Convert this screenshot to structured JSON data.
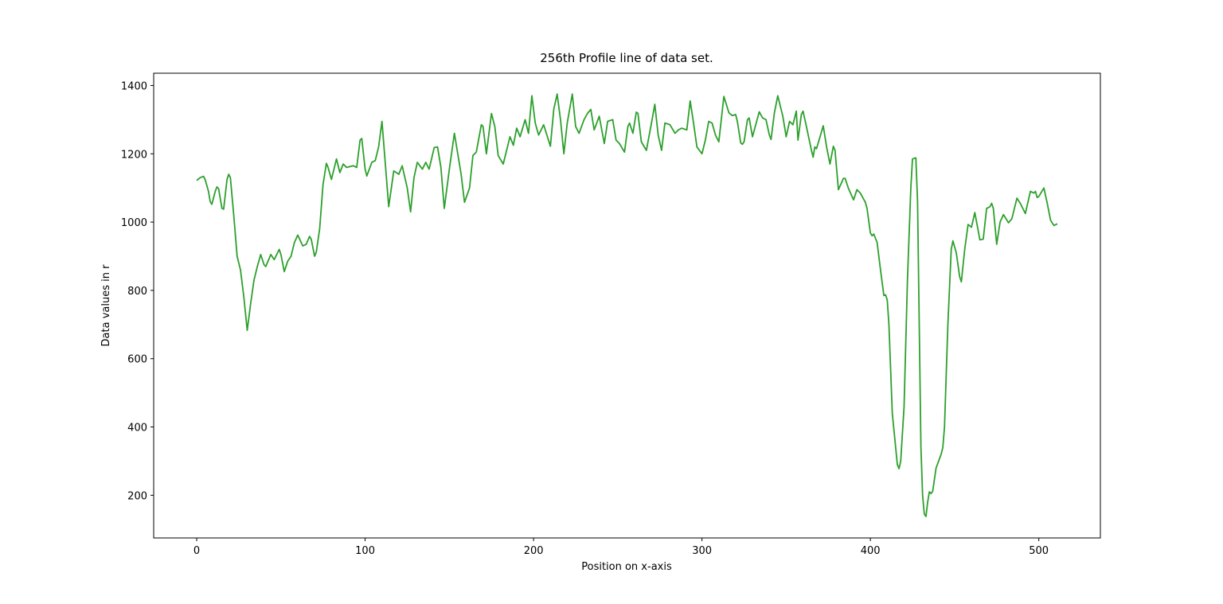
{
  "chart_data": {
    "type": "line",
    "title": "256th Profile line of data set.",
    "x_label": "Position on x-axis",
    "y_label": "Data values in r",
    "color": "#2ca02c",
    "xlim": [
      -25.55,
      536.55
    ],
    "ylim": [
      75,
      1436
    ],
    "xticks": [
      0,
      100,
      200,
      300,
      400,
      500
    ],
    "yticks": [
      200,
      400,
      600,
      800,
      1000,
      1200,
      1400
    ],
    "x": [
      0,
      2,
      4,
      5,
      7,
      8,
      9,
      11,
      12,
      13,
      15,
      16,
      18,
      19,
      20,
      22,
      24,
      26,
      28,
      30,
      32,
      34,
      36,
      38,
      40,
      41,
      44,
      46,
      49,
      50,
      52,
      54,
      56,
      58,
      60,
      63,
      65,
      67,
      68,
      70,
      71,
      73,
      75,
      77,
      78,
      80,
      83,
      85,
      87,
      89,
      93,
      95,
      97,
      98,
      100,
      101,
      104,
      106,
      108,
      110,
      112,
      114,
      117,
      120,
      122,
      125,
      127,
      129,
      131,
      134,
      136,
      138,
      141,
      143,
      145,
      147,
      150,
      153,
      155,
      157,
      159,
      162,
      164,
      166,
      169,
      170,
      172,
      175,
      177,
      179,
      182,
      186,
      188,
      190,
      192,
      195,
      197,
      199,
      201,
      203,
      206,
      210,
      212,
      214,
      216,
      218,
      220,
      223,
      225,
      227,
      230,
      232,
      234,
      236,
      239,
      242,
      244,
      247,
      249,
      251,
      254,
      256,
      257,
      259,
      261,
      262,
      264,
      267,
      270,
      272,
      274,
      276,
      278,
      281,
      284,
      286,
      288,
      291,
      293,
      295,
      297,
      300,
      302,
      304,
      306,
      308,
      310,
      313,
      316,
      318,
      320,
      321,
      323,
      324,
      325,
      327,
      328,
      330,
      334,
      336,
      338,
      340,
      341,
      343,
      345,
      348,
      350,
      352,
      354,
      356,
      357,
      359,
      360,
      362,
      365,
      366,
      367,
      368,
      372,
      374,
      376,
      378,
      379,
      381,
      384,
      385,
      387,
      390,
      392,
      394,
      397,
      398,
      400,
      401,
      402,
      404,
      406,
      408,
      409,
      410,
      411,
      413,
      416,
      417,
      418,
      420,
      422,
      424,
      425,
      427,
      428,
      429,
      430,
      431,
      432,
      433,
      434,
      435,
      436,
      437,
      439,
      442,
      443,
      444,
      446,
      448,
      449,
      451,
      453,
      454,
      456,
      458,
      460,
      462,
      464,
      465,
      467,
      469,
      471,
      472,
      473,
      475,
      477,
      479,
      482,
      484,
      487,
      489,
      492,
      495,
      497,
      498,
      499,
      500,
      503,
      505,
      507,
      509,
      511
    ],
    "values": [
      1122,
      1130,
      1134,
      1125,
      1090,
      1060,
      1052,
      1090,
      1103,
      1098,
      1040,
      1038,
      1125,
      1140,
      1130,
      1020,
      900,
      860,
      780,
      683,
      760,
      830,
      870,
      905,
      875,
      870,
      905,
      890,
      920,
      905,
      855,
      885,
      900,
      940,
      962,
      930,
      935,
      958,
      950,
      900,
      912,
      980,
      1110,
      1172,
      1160,
      1125,
      1185,
      1145,
      1170,
      1160,
      1165,
      1160,
      1240,
      1245,
      1155,
      1135,
      1175,
      1180,
      1220,
      1295,
      1170,
      1045,
      1150,
      1140,
      1165,
      1100,
      1030,
      1130,
      1175,
      1155,
      1175,
      1155,
      1218,
      1220,
      1160,
      1040,
      1155,
      1260,
      1200,
      1140,
      1058,
      1100,
      1195,
      1205,
      1285,
      1280,
      1200,
      1318,
      1280,
      1195,
      1170,
      1250,
      1225,
      1275,
      1250,
      1300,
      1260,
      1370,
      1290,
      1255,
      1285,
      1222,
      1330,
      1375,
      1300,
      1200,
      1290,
      1375,
      1280,
      1260,
      1300,
      1318,
      1330,
      1270,
      1310,
      1230,
      1295,
      1300,
      1240,
      1230,
      1205,
      1280,
      1290,
      1260,
      1322,
      1318,
      1235,
      1210,
      1290,
      1345,
      1255,
      1210,
      1290,
      1285,
      1260,
      1270,
      1275,
      1270,
      1355,
      1290,
      1220,
      1200,
      1240,
      1295,
      1290,
      1255,
      1235,
      1368,
      1320,
      1312,
      1315,
      1295,
      1232,
      1228,
      1235,
      1300,
      1305,
      1250,
      1323,
      1305,
      1300,
      1255,
      1242,
      1320,
      1370,
      1310,
      1250,
      1295,
      1285,
      1325,
      1240,
      1315,
      1325,
      1280,
      1210,
      1190,
      1220,
      1215,
      1282,
      1220,
      1170,
      1222,
      1210,
      1095,
      1128,
      1128,
      1098,
      1065,
      1095,
      1085,
      1058,
      1040,
      968,
      960,
      965,
      940,
      860,
      785,
      787,
      772,
      700,
      440,
      290,
      278,
      300,
      460,
      830,
      1100,
      1185,
      1188,
      1060,
      700,
      340,
      200,
      145,
      138,
      180,
      210,
      205,
      212,
      280,
      320,
      340,
      400,
      700,
      920,
      945,
      910,
      840,
      825,
      920,
      993,
      985,
      1028,
      975,
      948,
      950,
      1040,
      1045,
      1055,
      1040,
      935,
      1000,
      1022,
      998,
      1010,
      1070,
      1055,
      1025,
      1090,
      1085,
      1090,
      1072,
      1075,
      1100,
      1055,
      1005,
      990,
      995
    ]
  }
}
